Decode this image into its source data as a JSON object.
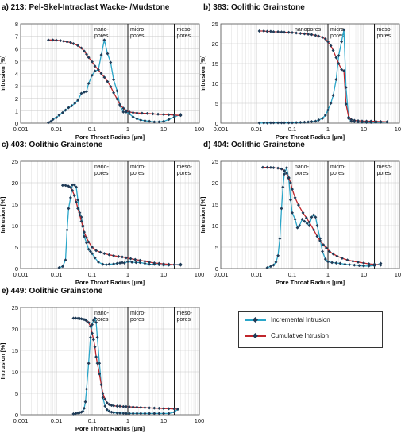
{
  "colors": {
    "incremental": "#2aa6c9",
    "cumulative": "#c0262c",
    "marker": "#1f3b57"
  },
  "legend": {
    "incremental": "Incremental Intrusion",
    "cumulative": "Cumulative Intrusion"
  },
  "chart_data": [
    {
      "type": "line",
      "title": "a) 213: Pel-Skel-Intraclast Wacke- /Mudstone",
      "xlabel": "Pore Throat Radius [µm]",
      "ylabel": "Intrusion [%]",
      "xscale": "log",
      "xlim": [
        0.001,
        100
      ],
      "xticks": [
        "0.001",
        "0.01",
        "0.1",
        "1",
        "10",
        "100"
      ],
      "ylim": [
        0,
        8
      ],
      "yticks": [
        "0",
        "1",
        "2",
        "3",
        "4",
        "5",
        "6",
        "7",
        "8"
      ],
      "regions": [
        {
          "label": "nano-\npores",
          "from": 0.1,
          "to": 1
        },
        {
          "label": "micro-\npores",
          "from": 1,
          "to": 20
        },
        {
          "label": "meso-\npores",
          "from": 20,
          "to": 100
        }
      ],
      "boundaries": [
        1,
        20
      ],
      "series": [
        {
          "name": "Incremental Intrusion",
          "x": [
            0.006,
            0.007,
            0.008,
            0.01,
            0.012,
            0.015,
            0.018,
            0.022,
            0.027,
            0.033,
            0.04,
            0.05,
            0.06,
            0.07,
            0.08,
            0.1,
            0.12,
            0.15,
            0.18,
            0.22,
            0.27,
            0.33,
            0.4,
            0.5,
            0.6,
            0.75,
            0.9,
            1.1,
            1.4,
            1.8,
            2.3,
            3,
            4,
            5.5,
            7.5,
            10,
            14,
            20,
            30
          ],
          "y": [
            0.05,
            0.15,
            0.3,
            0.45,
            0.65,
            0.85,
            1.05,
            1.25,
            1.4,
            1.6,
            1.85,
            2.4,
            2.5,
            2.55,
            3.2,
            3.85,
            4.2,
            4.3,
            5.5,
            6.7,
            5.6,
            4.9,
            3.5,
            2.6,
            1.4,
            0.9,
            0.9,
            0.75,
            0.5,
            0.35,
            0.25,
            0.2,
            0.15,
            0.1,
            0.1,
            0.15,
            0.3,
            0.5,
            0.7
          ]
        },
        {
          "name": "Cumulative Intrusion",
          "x": [
            0.006,
            0.008,
            0.01,
            0.013,
            0.016,
            0.02,
            0.025,
            0.03,
            0.04,
            0.05,
            0.06,
            0.07,
            0.08,
            0.1,
            0.12,
            0.15,
            0.18,
            0.22,
            0.27,
            0.33,
            0.4,
            0.5,
            0.6,
            0.75,
            0.9,
            1.1,
            1.4,
            1.8,
            2.5,
            3.5,
            5,
            7,
            10,
            14,
            20,
            30
          ],
          "y": [
            6.7,
            6.7,
            6.68,
            6.65,
            6.6,
            6.55,
            6.5,
            6.4,
            6.25,
            6.05,
            5.8,
            5.55,
            5.3,
            4.95,
            4.6,
            4.3,
            4.0,
            3.7,
            3.35,
            2.95,
            2.45,
            1.95,
            1.5,
            1.2,
            1.0,
            0.9,
            0.85,
            0.82,
            0.8,
            0.78,
            0.75,
            0.72,
            0.7,
            0.68,
            0.65,
            0.62
          ]
        }
      ]
    },
    {
      "type": "line",
      "title": "b) 383: Oolithic Grainstone",
      "xlabel": "Pore Throat Radius [µm]",
      "ylabel": "Intrusion [%]",
      "xscale": "log",
      "xlim": [
        0.001,
        100
      ],
      "xticks": [
        "0.001",
        "0.01",
        "0.1",
        "1",
        "10",
        "100"
      ],
      "ylim": [
        0,
        25
      ],
      "yticks": [
        "0",
        "5",
        "10",
        "15",
        "20",
        "25"
      ],
      "regions": [
        {
          "label": "nanopores",
          "from": 0.1,
          "to": 1
        },
        {
          "label": "micro-\npores",
          "from": 1,
          "to": 20
        },
        {
          "label": "meso-\npores",
          "from": 20,
          "to": 100
        }
      ],
      "boundaries": [
        1,
        20
      ],
      "series": [
        {
          "name": "Incremental Intrusion",
          "x": [
            0.012,
            0.016,
            0.02,
            0.025,
            0.03,
            0.04,
            0.05,
            0.06,
            0.08,
            0.1,
            0.13,
            0.17,
            0.22,
            0.28,
            0.35,
            0.45,
            0.55,
            0.7,
            0.85,
            1.0,
            1.2,
            1.4,
            1.7,
            2.0,
            2.4,
            2.8,
            3.2,
            3.8,
            4.5,
            5.5,
            7,
            9,
            12,
            16,
            22,
            30,
            45
          ],
          "y": [
            0.05,
            0.05,
            0.05,
            0.1,
            0.1,
            0.1,
            0.1,
            0.1,
            0.1,
            0.1,
            0.15,
            0.2,
            0.25,
            0.3,
            0.4,
            0.5,
            0.8,
            1.2,
            2.0,
            3.3,
            5.0,
            7.0,
            11.0,
            17.0,
            20.5,
            23.5,
            9.0,
            1.2,
            0.5,
            0.4,
            0.3,
            0.25,
            0.2,
            0.2,
            0.2,
            0.25,
            0.3
          ]
        },
        {
          "name": "Cumulative Intrusion",
          "x": [
            0.012,
            0.016,
            0.02,
            0.025,
            0.03,
            0.04,
            0.05,
            0.06,
            0.08,
            0.1,
            0.13,
            0.17,
            0.22,
            0.28,
            0.35,
            0.45,
            0.55,
            0.7,
            0.85,
            1.0,
            1.2,
            1.4,
            1.7,
            2.0,
            2.4,
            2.8,
            3.2,
            3.8,
            4.5,
            5.5,
            7,
            9,
            12,
            16,
            22,
            30,
            45
          ],
          "y": [
            23.2,
            23.2,
            23.1,
            23.1,
            23.0,
            23.0,
            22.95,
            22.9,
            22.85,
            22.8,
            22.7,
            22.6,
            22.5,
            22.4,
            22.3,
            22.1,
            21.9,
            21.6,
            21.2,
            20.5,
            19.5,
            18.3,
            16.5,
            15.0,
            13.5,
            13.2,
            4.8,
            1.5,
            0.9,
            0.7,
            0.6,
            0.55,
            0.5,
            0.5,
            0.45,
            0.4,
            0.35
          ]
        }
      ]
    },
    {
      "type": "line",
      "title": "c) 403: Oolithic Grainstone",
      "xlabel": "Pore Throat Radius [µm]",
      "ylabel": "Intrusion [%]",
      "xscale": "log",
      "xlim": [
        0.001,
        100
      ],
      "xticks": [
        "0.001",
        "0.01",
        "0.1",
        "1",
        "10",
        "100"
      ],
      "ylim": [
        0,
        25
      ],
      "yticks": [
        "0",
        "5",
        "10",
        "15",
        "20",
        "25"
      ],
      "regions": [
        {
          "label": "nano-\npores",
          "from": 0.1,
          "to": 1
        },
        {
          "label": "micro-\npores",
          "from": 1,
          "to": 20
        },
        {
          "label": "meso-\npores",
          "from": 20,
          "to": 100
        }
      ],
      "boundaries": [
        1,
        20
      ],
      "series": [
        {
          "name": "Incremental Intrusion",
          "x": [
            0.012,
            0.015,
            0.018,
            0.02,
            0.022,
            0.025,
            0.028,
            0.032,
            0.036,
            0.04,
            0.045,
            0.05,
            0.055,
            0.06,
            0.07,
            0.08,
            0.09,
            0.1,
            0.12,
            0.15,
            0.2,
            0.25,
            0.3,
            0.4,
            0.5,
            0.6,
            0.7,
            0.8,
            1.0,
            1.3,
            1.7,
            2.2,
            3,
            4,
            5.5,
            7.5,
            10,
            14,
            20,
            30
          ],
          "y": [
            0.2,
            0.5,
            2.0,
            9.0,
            14.0,
            16.5,
            19.5,
            19.5,
            19.0,
            16.0,
            13.0,
            12.0,
            10.0,
            7.5,
            6.0,
            4.5,
            4.0,
            3.5,
            2.5,
            1.5,
            1.0,
            0.9,
            1.0,
            1.1,
            1.2,
            1.3,
            1.4,
            1.3,
            1.6,
            1.5,
            1.4,
            1.4,
            1.2,
            1.0,
            1.0,
            0.9,
            0.8,
            0.8,
            0.9,
            1.0
          ]
        },
        {
          "name": "Cumulative Intrusion",
          "x": [
            0.015,
            0.018,
            0.02,
            0.022,
            0.025,
            0.028,
            0.032,
            0.036,
            0.04,
            0.045,
            0.05,
            0.055,
            0.06,
            0.07,
            0.08,
            0.1,
            0.13,
            0.17,
            0.22,
            0.3,
            0.4,
            0.55,
            0.7,
            0.9,
            1.2,
            1.6,
            2.2,
            3,
            4,
            5.5,
            7.5,
            10,
            14,
            20,
            30
          ],
          "y": [
            19.4,
            19.4,
            19.3,
            19.2,
            18.9,
            18.2,
            17.0,
            15.5,
            14.0,
            12.5,
            11.0,
            9.8,
            8.5,
            7.2,
            6.2,
            5.0,
            4.2,
            3.8,
            3.5,
            3.2,
            3.0,
            2.8,
            2.7,
            2.5,
            2.3,
            2.1,
            1.9,
            1.7,
            1.5,
            1.3,
            1.2,
            1.1,
            1.0,
            0.9,
            0.8
          ]
        }
      ]
    },
    {
      "type": "line",
      "title": "d) 404: Oolithic Grainstone",
      "xlabel": "Pore Throat Radius [µm]",
      "ylabel": "Intrusion [%]",
      "xscale": "log",
      "xlim": [
        0.001,
        100
      ],
      "xticks": [
        "0.001",
        "0.01",
        "0.1",
        "1",
        "10",
        "100"
      ],
      "ylim": [
        0,
        25
      ],
      "yticks": [
        "0",
        "5",
        "10",
        "15",
        "20",
        "25"
      ],
      "regions": [
        {
          "label": "nano-\npores",
          "from": 0.1,
          "to": 1
        },
        {
          "label": "micro-\npores",
          "from": 1,
          "to": 20
        },
        {
          "label": "meso-\npores",
          "from": 20,
          "to": 100
        }
      ],
      "boundaries": [
        1,
        20
      ],
      "series": [
        {
          "name": "Incremental Intrusion",
          "x": [
            0.02,
            0.025,
            0.03,
            0.035,
            0.04,
            0.045,
            0.05,
            0.055,
            0.06,
            0.07,
            0.08,
            0.09,
            0.1,
            0.12,
            0.14,
            0.16,
            0.19,
            0.22,
            0.26,
            0.3,
            0.35,
            0.4,
            0.45,
            0.5,
            0.6,
            0.7,
            0.85,
            1.0,
            1.3,
            1.7,
            2.2,
            3,
            4,
            5.5,
            7.5,
            10,
            14,
            20,
            30
          ],
          "y": [
            0.2,
            0.5,
            0.8,
            1.5,
            3.0,
            7.0,
            14.0,
            19.0,
            22.0,
            23.5,
            21.0,
            16.0,
            13.0,
            11.5,
            9.5,
            10.0,
            11.5,
            11.0,
            10.5,
            10.0,
            12.0,
            12.5,
            12.0,
            10.0,
            7.0,
            4.0,
            2.2,
            1.6,
            1.4,
            1.3,
            1.2,
            1.0,
            0.9,
            0.8,
            0.7,
            0.6,
            0.6,
            0.7,
            1.2
          ]
        },
        {
          "name": "Cumulative Intrusion",
          "x": [
            0.015,
            0.02,
            0.025,
            0.03,
            0.04,
            0.05,
            0.06,
            0.07,
            0.08,
            0.09,
            0.1,
            0.12,
            0.15,
            0.2,
            0.25,
            0.3,
            0.4,
            0.5,
            0.6,
            0.75,
            0.9,
            1.1,
            1.4,
            1.8,
            2.5,
            3.5,
            5,
            7,
            10,
            14,
            20,
            30
          ],
          "y": [
            23.6,
            23.6,
            23.55,
            23.5,
            23.4,
            23.2,
            22.8,
            22.2,
            21.2,
            20.0,
            18.5,
            16.5,
            14.8,
            13.0,
            11.8,
            10.8,
            9.0,
            7.5,
            6.5,
            5.5,
            4.8,
            4.0,
            3.4,
            2.9,
            2.4,
            2.0,
            1.7,
            1.5,
            1.3,
            1.1,
            1.0,
            0.8
          ]
        }
      ]
    },
    {
      "type": "line",
      "title": "e) 449: Oolithic Grainstone",
      "xlabel": "Pore Throat Radius [µm]",
      "ylabel": "Intrusion [%]",
      "xscale": "log",
      "xlim": [
        0.001,
        100
      ],
      "xticks": [
        "0.001",
        "0.01",
        "0.1",
        "1",
        "10",
        "100"
      ],
      "ylim": [
        0,
        25
      ],
      "yticks": [
        "0",
        "5",
        "10",
        "15",
        "20",
        "25"
      ],
      "regions": [
        {
          "label": "nano-\npores",
          "from": 0.1,
          "to": 1
        },
        {
          "label": "micro-\npores",
          "from": 1,
          "to": 20
        },
        {
          "label": "meso-\npores",
          "from": 20,
          "to": 100
        }
      ],
      "boundaries": [
        1,
        20
      ],
      "series": [
        {
          "name": "Incremental Intrusion",
          "x": [
            0.03,
            0.035,
            0.04,
            0.045,
            0.05,
            0.055,
            0.06,
            0.065,
            0.07,
            0.08,
            0.09,
            0.1,
            0.11,
            0.12,
            0.13,
            0.14,
            0.16,
            0.18,
            0.2,
            0.23,
            0.26,
            0.3,
            0.35,
            0.4,
            0.5,
            0.6,
            0.75,
            0.9,
            1.1,
            1.4,
            1.8,
            2.3,
            3,
            4,
            5.5,
            7.5,
            10,
            14,
            20,
            25
          ],
          "y": [
            0.2,
            0.3,
            0.4,
            0.5,
            0.6,
            0.8,
            1.5,
            3.0,
            6.0,
            12.0,
            18.0,
            21.0,
            22.0,
            22.5,
            21.5,
            18.0,
            12.0,
            7.0,
            4.0,
            2.0,
            1.2,
            0.8,
            0.6,
            0.5,
            0.4,
            0.4,
            0.35,
            0.3,
            0.3,
            0.3,
            0.3,
            0.3,
            0.3,
            0.3,
            0.3,
            0.3,
            0.3,
            0.3,
            0.6,
            1.3
          ]
        },
        {
          "name": "Cumulative Intrusion",
          "x": [
            0.03,
            0.035,
            0.04,
            0.045,
            0.05,
            0.055,
            0.06,
            0.065,
            0.07,
            0.08,
            0.09,
            0.1,
            0.11,
            0.12,
            0.13,
            0.14,
            0.16,
            0.18,
            0.2,
            0.23,
            0.26,
            0.3,
            0.35,
            0.4,
            0.5,
            0.6,
            0.75,
            0.9,
            1.1,
            1.4,
            1.8,
            2.3,
            3,
            4,
            5.5,
            7.5,
            10,
            14,
            20,
            25
          ],
          "y": [
            22.5,
            22.5,
            22.45,
            22.4,
            22.35,
            22.3,
            22.2,
            22.1,
            21.9,
            21.5,
            20.6,
            19.0,
            17.5,
            15.8,
            13.5,
            12.0,
            9.5,
            7.0,
            5.0,
            3.6,
            2.8,
            2.4,
            2.2,
            2.1,
            2.0,
            2.0,
            1.9,
            1.9,
            1.85,
            1.8,
            1.75,
            1.7,
            1.65,
            1.6,
            1.55,
            1.5,
            1.45,
            1.4,
            1.35,
            1.3
          ]
        }
      ]
    }
  ]
}
